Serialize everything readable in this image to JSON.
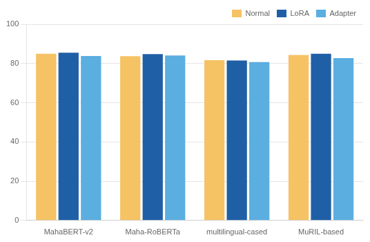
{
  "chart_data": {
    "type": "bar",
    "categories": [
      "MahaBERT-v2",
      "Maha-RoBERTa",
      "multilingual-cased",
      "MuRIL-based"
    ],
    "series": [
      {
        "name": "Normal",
        "color": "#F5C264",
        "values": [
          84.9,
          83.7,
          81.69,
          84.3
        ]
      },
      {
        "name": "LoRA",
        "color": "#1F5FA6",
        "values": [
          85.5,
          84.76,
          81.53,
          84.93
        ]
      },
      {
        "name": "Adapter",
        "color": "#5BAEE0",
        "values": [
          83.8,
          84.09,
          80.67,
          82.76
        ]
      }
    ],
    "ylim": [
      0,
      100
    ],
    "yticks": [
      0,
      20,
      40,
      60,
      80,
      100
    ],
    "grid": true,
    "legend": "upper right"
  }
}
